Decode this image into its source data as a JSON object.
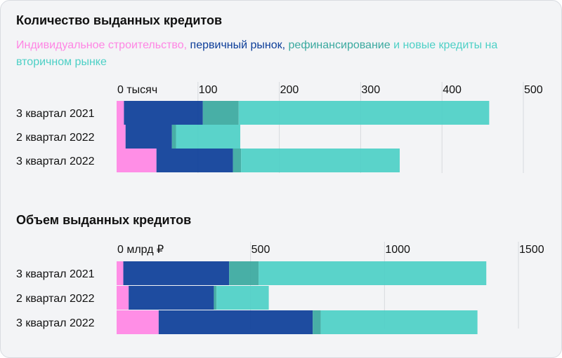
{
  "colors": {
    "individual": "#ff85e4",
    "primary": "#0d3e99",
    "refinancing": "#3aa99f",
    "new_secondary": "#4dd0c6",
    "grid": "#d7dade",
    "text": "#111111"
  },
  "legend": {
    "individual": "Индивидуальное строительство,",
    "primary": "первичный рынок,",
    "refinancing": "рефинансирование",
    "joiner": "и",
    "new_secondary": "новые кредиты на вторичном рынке"
  },
  "chart_data": [
    {
      "type": "bar",
      "orientation": "horizontal",
      "stacked": true,
      "title": "Количество выданных кредитов",
      "xlim": [
        0,
        500
      ],
      "x_ticks": [
        {
          "value": 0,
          "label": "0 тысяч"
        },
        {
          "value": 100,
          "label": "100"
        },
        {
          "value": 200,
          "label": "200"
        },
        {
          "value": 300,
          "label": "300"
        },
        {
          "value": 400,
          "label": "400"
        },
        {
          "value": 500,
          "label": "500"
        }
      ],
      "grid": true,
      "categories": [
        "3 квартал 2021",
        "2 квартал 2022",
        "3 квартал 2022"
      ],
      "series": [
        {
          "key": "individual",
          "values": [
            9,
            11,
            49
          ]
        },
        {
          "key": "primary",
          "values": [
            97,
            57,
            94
          ]
        },
        {
          "key": "refinancing",
          "values": [
            44,
            5,
            10
          ]
        },
        {
          "key": "new_secondary",
          "values": [
            308,
            79,
            195
          ]
        }
      ]
    },
    {
      "type": "bar",
      "orientation": "horizontal",
      "stacked": true,
      "title": "Объем выданных кредитов",
      "xlim": [
        0,
        1500
      ],
      "x_ticks": [
        {
          "value": 0,
          "label": "0 млрд ₽"
        },
        {
          "value": 500,
          "label": "500"
        },
        {
          "value": 1000,
          "label": "1000"
        },
        {
          "value": 1500,
          "label": "1500"
        }
      ],
      "grid": true,
      "categories": [
        "3 квартал 2021",
        "2 квартал 2022",
        "3 квартал 2022"
      ],
      "series": [
        {
          "key": "individual",
          "values": [
            25,
            45,
            157
          ]
        },
        {
          "key": "primary",
          "values": [
            395,
            318,
            575
          ]
        },
        {
          "key": "refinancing",
          "values": [
            110,
            10,
            30
          ]
        },
        {
          "key": "new_secondary",
          "values": [
            850,
            195,
            585
          ]
        }
      ]
    }
  ]
}
